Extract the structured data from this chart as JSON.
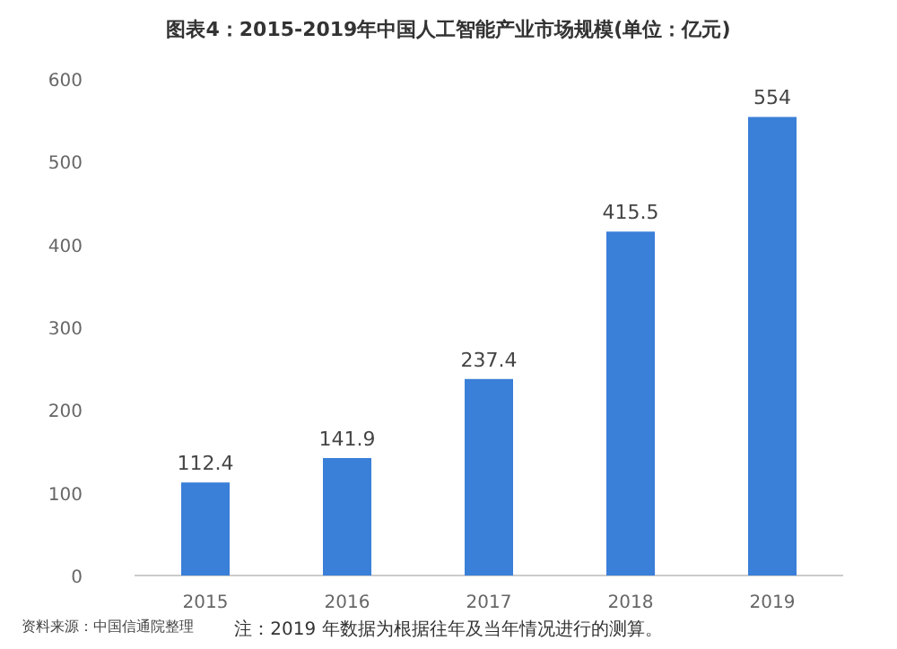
{
  "chart_data": {
    "type": "bar",
    "title": "图表4：2015-2019年中国人工智能产业市场规模(单位：亿元)",
    "categories": [
      "2015",
      "2016",
      "2017",
      "2018",
      "2019"
    ],
    "values": [
      112.4,
      141.9,
      237.4,
      415.5,
      554
    ],
    "color": "#3a7fd8",
    "ylim": [
      0,
      600
    ],
    "yticks": [
      0,
      100,
      200,
      300,
      400,
      500,
      600
    ],
    "data_labels": true,
    "annotations": [
      "注：2019 年数据为根据往年及当年情况进行的测算。",
      "资料来源：中国信通院整理"
    ]
  }
}
